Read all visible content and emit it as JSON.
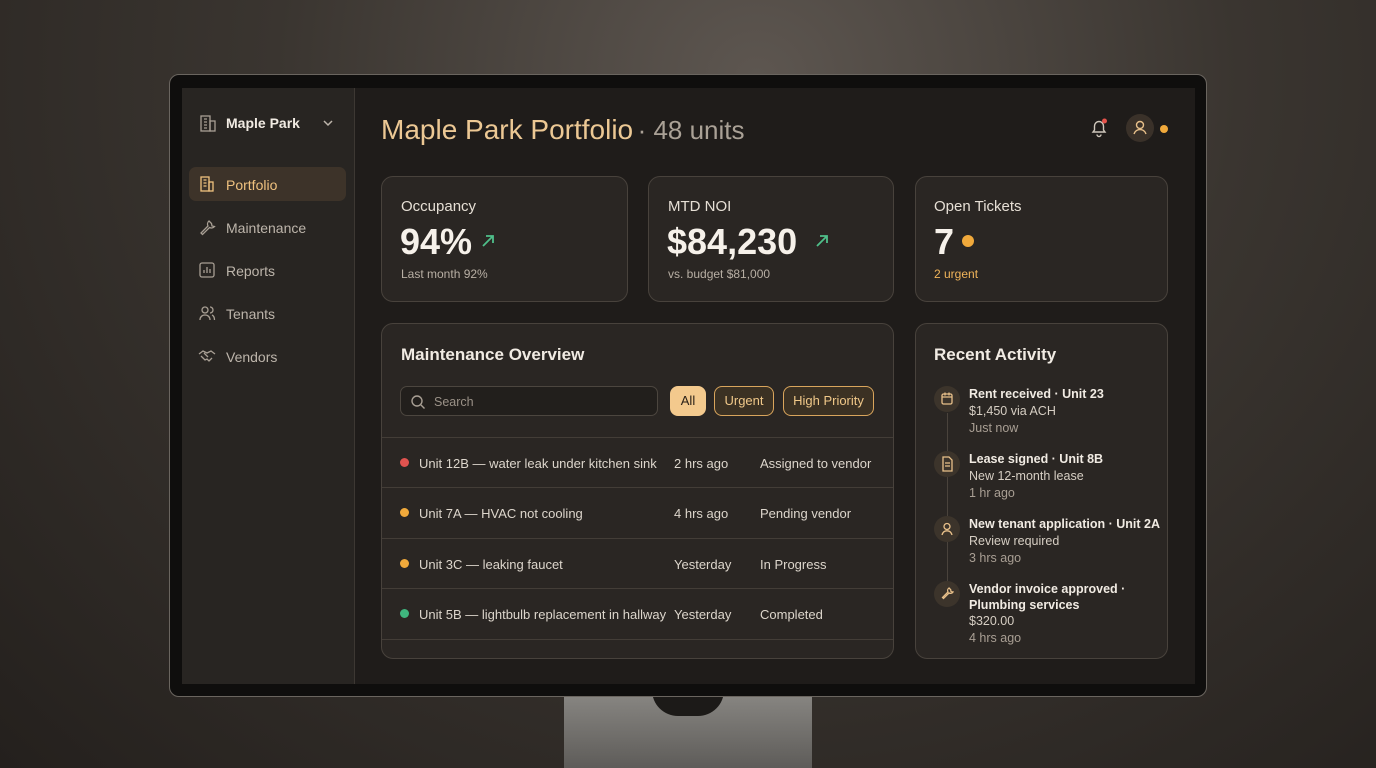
{
  "sidebar": {
    "property": "Maple Park",
    "nav": [
      "Portfolio",
      "Maintenance",
      "Reports",
      "Tenants",
      "Vendors"
    ]
  },
  "header": {
    "title": "Maple Park Portfolio",
    "subtitle": "· 48 units"
  },
  "kpis": [
    {
      "label": "Occupancy",
      "value": "94%",
      "note": "Last month 92%"
    },
    {
      "label": "MTD NOI",
      "value": "$84,230",
      "note": "vs. budget $81,000"
    },
    {
      "label": "Open Tickets",
      "value": "7",
      "note": "2 urgent"
    }
  ],
  "maintenance": {
    "title": "Maintenance Overview",
    "search_placeholder": "Search",
    "filters": [
      "All",
      "Urgent",
      "High Priority"
    ],
    "rows": [
      [
        "Unit 12B — water leak under kitchen sink",
        "2 hrs ago",
        "Assigned to vendor"
      ],
      [
        "Unit 7A — HVAC not cooling",
        "4 hrs ago",
        "Pending vendor"
      ],
      [
        "Unit 3C — leaking faucet",
        "Yesterday",
        "In Progress"
      ],
      [
        "Unit 5B — lightbulb replacement in hallway",
        "Yesterday",
        "Completed"
      ]
    ]
  },
  "activity": {
    "title": "Recent Activity",
    "items": [
      {
        "title": "Rent received · Unit 23",
        "detail": "$1,450 via ACH",
        "time": "Just now"
      },
      {
        "title": "Lease signed · Unit 8B",
        "detail": "New 12-month lease",
        "time": "1 hr ago"
      },
      {
        "title": "New tenant application · Unit 2A",
        "detail": "Review required",
        "time": "3 hrs ago"
      },
      {
        "title": "Vendor invoice approved · Plumbing services",
        "detail": "$320.00",
        "time": "4 hrs ago"
      }
    ]
  }
}
